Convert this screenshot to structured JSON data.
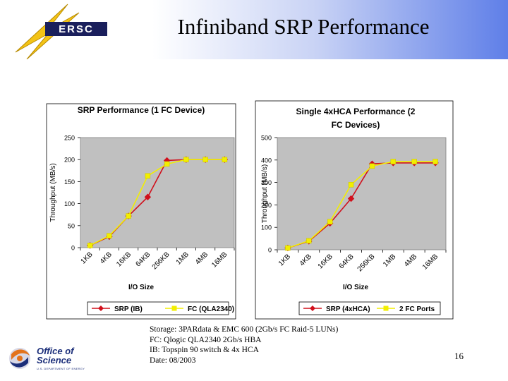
{
  "slide": {
    "title": "Infiniband SRP Performance",
    "logo_text": "ERSC",
    "page_number": "16",
    "footer_logo": {
      "line1": "Office of",
      "line2": "Science",
      "sub": "U.S. DEPARTMENT OF ENERGY"
    },
    "caption": [
      "Storage: 3PARdata & EMC 600 (2Gb/s FC Raid-5 LUNs)",
      "FC: Qlogic QLA2340 2Gb/s HBA",
      "IB: Topspin 90 switch & 4x HCA",
      "Date: 08/2003"
    ]
  },
  "colors": {
    "plot_bg": "#c0c0c0",
    "series_red": "#d1101c",
    "series_yellow": "#f2ee00",
    "banner_blue": "#5f7fe8"
  },
  "chart_data": [
    {
      "type": "line",
      "title": "SRP Performance (1 FC Device)",
      "xlabel": "I/O Size",
      "ylabel": "Throughput (MB/s)",
      "categories": [
        "1KB",
        "4KB",
        "16KB",
        "64KB",
        "256KB",
        "1MB",
        "4MB",
        "16MB"
      ],
      "ylim": [
        0,
        250
      ],
      "yticks": [
        "0",
        "50",
        "100",
        "150",
        "200",
        "250"
      ],
      "series": [
        {
          "name": "SRP (IB)",
          "color": "#d1101c",
          "marker": "diamond",
          "values": [
            5,
            25,
            72,
            115,
            198,
            200,
            200,
            200
          ]
        },
        {
          "name": "FC (QLA2340)",
          "color": "#f2ee00",
          "marker": "square",
          "values": [
            5,
            27,
            72,
            163,
            190,
            200,
            200,
            200
          ]
        }
      ],
      "grid": false,
      "legend": "bottom"
    },
    {
      "type": "line",
      "title": "Single 4xHCA Performance (2 FC Devices)",
      "xlabel": "I/O Size",
      "ylabel": "Throughput (MB/s)",
      "categories": [
        "1KB",
        "4KB",
        "16KB",
        "64KB",
        "256KB",
        "1MB",
        "4MB",
        "16MB"
      ],
      "ylim": [
        0,
        500
      ],
      "yticks": [
        "0",
        "100",
        "200",
        "300",
        "400",
        "500"
      ],
      "series": [
        {
          "name": "SRP (4xHCA)",
          "color": "#d1101c",
          "marker": "diamond",
          "values": [
            8,
            38,
            118,
            228,
            383,
            387,
            387,
            387
          ]
        },
        {
          "name": "2 FC Ports",
          "color": "#f2ee00",
          "marker": "square",
          "values": [
            8,
            40,
            125,
            290,
            373,
            393,
            393,
            393
          ]
        }
      ],
      "grid": false,
      "legend": "bottom"
    }
  ]
}
